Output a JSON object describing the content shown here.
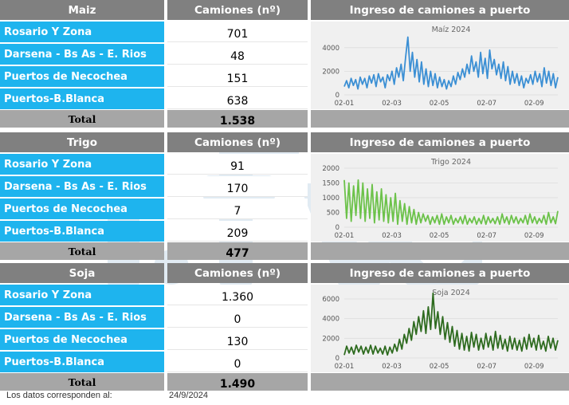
{
  "headers": {
    "trucks": "Camiones (nº)",
    "chart": "Ingreso de camiones a puerto"
  },
  "ports": [
    "Rosario Y Zona",
    "Darsena - Bs As - E. Rios",
    "Puertos de Necochea",
    "Puertos-B.Blanca"
  ],
  "total_label": "Total",
  "sections": [
    {
      "grain": "Maiz",
      "values": [
        "701",
        "48",
        "151",
        "638"
      ],
      "total": "1.538"
    },
    {
      "grain": "Trigo",
      "values": [
        "91",
        "170",
        "7",
        "209"
      ],
      "total": "477"
    },
    {
      "grain": "Soja",
      "values": [
        "1.360",
        "0",
        "130",
        "0"
      ],
      "total": "1.490"
    }
  ],
  "footer": {
    "label": "Los datos corresponden al:",
    "date": "24/9/2024"
  },
  "chart_data": [
    {
      "type": "line",
      "title": "Maíz 2024",
      "color": "#3b8fd4",
      "x_ticks": [
        "02-01",
        "02-03",
        "02-05",
        "02-07",
        "02-09"
      ],
      "y_ticks": [
        0,
        2000,
        4000
      ],
      "ylim": [
        0,
        5000
      ],
      "x_range": [
        "2024-02-01",
        "2024-09-24"
      ],
      "series": [
        {
          "values": [
            700,
            1200,
            600,
            1400,
            800,
            1300,
            500,
            1500,
            900,
            1400,
            600,
            1600,
            1000,
            1700,
            700,
            1800,
            1100,
            1500,
            600,
            1700,
            1200,
            2000,
            900,
            2300,
            1500,
            2600,
            1200,
            3200,
            4900,
            2000,
            3600,
            1500,
            3000,
            1100,
            2800,
            900,
            2200,
            700,
            2000,
            800,
            1800,
            600,
            1500,
            700,
            1300,
            500,
            1200,
            700,
            1600,
            900,
            1900,
            1300,
            2200,
            1500,
            2600,
            1800,
            3300,
            2000,
            2800,
            1500,
            3600,
            1800,
            3100,
            1400,
            3800,
            2200,
            3000,
            1700,
            2600,
            1400,
            2800,
            1200,
            2400,
            900,
            2000,
            1000,
            1800,
            800,
            1600,
            600,
            1400,
            1000,
            1700,
            900,
            2000,
            1100,
            1800,
            700,
            2300,
            1000,
            2000,
            800,
            1800,
            600,
            1500
          ]
        }
      ]
    },
    {
      "type": "line",
      "title": "Trigo 2024",
      "color": "#6cc24a",
      "x_ticks": [
        "02-01",
        "02-03",
        "02-05",
        "02-07",
        "02-09"
      ],
      "y_ticks": [
        0,
        500,
        1000,
        1500,
        2000
      ],
      "ylim": [
        0,
        2000
      ],
      "x_range": [
        "2024-02-01",
        "2024-09-24"
      ],
      "series": [
        {
          "values": [
            1600,
            300,
            1500,
            200,
            1400,
            400,
            1600,
            300,
            1500,
            200,
            1300,
            300,
            1450,
            150,
            1200,
            250,
            1300,
            200,
            1100,
            150,
            1000,
            200,
            1150,
            100,
            900,
            200,
            800,
            100,
            700,
            150,
            600,
            100,
            500,
            150,
            450,
            200,
            400,
            100,
            350,
            150,
            400,
            100,
            450,
            100,
            350,
            150,
            400,
            100,
            300,
            150,
            350,
            120,
            400,
            100,
            300,
            150,
            350,
            100,
            300,
            120,
            400,
            100,
            350,
            150,
            300,
            120,
            350,
            100,
            450,
            150,
            350,
            100,
            400,
            150,
            350,
            120,
            300,
            150,
            400,
            100,
            450,
            150,
            350,
            120,
            300,
            150,
            400,
            100,
            500,
            150,
            350,
            120,
            550
          ]
        }
      ]
    },
    {
      "type": "line",
      "title": "Soja 2024",
      "color": "#2e6b1f",
      "x_ticks": [
        "02-01",
        "02-03",
        "02-05",
        "02-07",
        "02-09"
      ],
      "y_ticks": [
        0,
        2000,
        4000,
        6000
      ],
      "ylim": [
        0,
        6000
      ],
      "x_range": [
        "2024-02-01",
        "2024-09-24"
      ],
      "series": [
        {
          "values": [
            300,
            1200,
            500,
            1100,
            400,
            1300,
            600,
            1200,
            400,
            1100,
            500,
            1300,
            400,
            1200,
            500,
            1000,
            400,
            1200,
            300,
            1100,
            500,
            1400,
            700,
            1900,
            900,
            2400,
            1500,
            3000,
            1800,
            3700,
            2400,
            4200,
            2700,
            4800,
            2500,
            5200,
            2900,
            6600,
            3000,
            4700,
            2400,
            4200,
            1900,
            3600,
            1600,
            3200,
            1200,
            2800,
            900,
            2500,
            800,
            2200,
            700,
            2600,
            1100,
            2400,
            800,
            2000,
            900,
            2500,
            1100,
            2200,
            800,
            2700,
            1000,
            2300,
            900,
            1900,
            700,
            2200,
            900,
            2000,
            800,
            1800,
            700,
            2100,
            900,
            2400,
            1100,
            2000,
            800,
            2300,
            900,
            1700,
            700,
            2200,
            1000,
            2000,
            800,
            1800
          ]
        }
      ]
    }
  ]
}
